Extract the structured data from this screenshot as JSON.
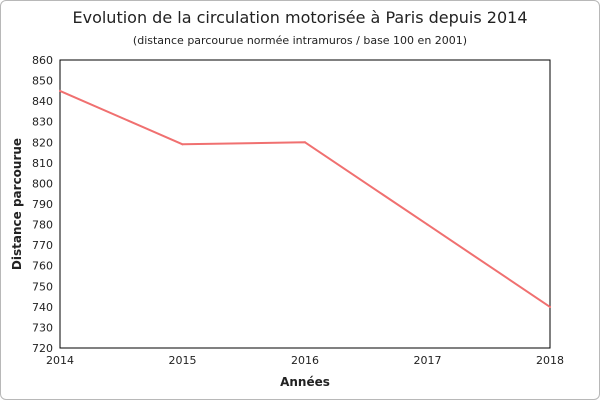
{
  "chart_data": {
    "type": "line",
    "title": "Evolution de la circulation motorisée à Paris depuis 2014",
    "subtitle": "(distance parcourue normée intramuros / base 100 en 2001)",
    "xlabel": "Années",
    "ylabel": "Distance parcourue",
    "x": [
      2014,
      2015,
      2016,
      2017,
      2018
    ],
    "x_ticks": [
      "2014",
      "2015",
      "2016",
      "2017",
      "2018"
    ],
    "series": [
      {
        "values": [
          845,
          819,
          820,
          780,
          740
        ],
        "color": "#f07070"
      }
    ],
    "xlim": [
      2014,
      2018
    ],
    "ylim": [
      720,
      860
    ],
    "y_ticks": [
      "720",
      "730",
      "740",
      "750",
      "760",
      "770",
      "780",
      "790",
      "800",
      "810",
      "820",
      "830",
      "840",
      "850",
      "860"
    ],
    "grid": false,
    "legend": "none"
  }
}
